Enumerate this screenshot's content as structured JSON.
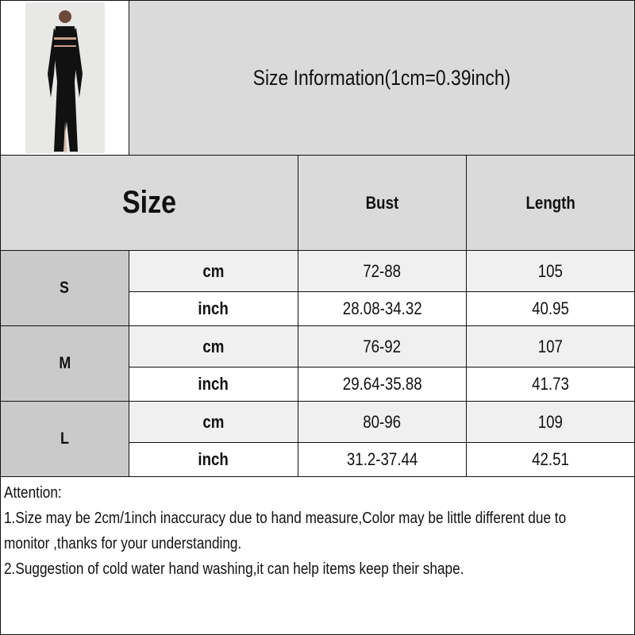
{
  "title": "Size Information(1cm=0.39inch)",
  "header": {
    "size": "Size",
    "bust": "Bust",
    "length": "Length"
  },
  "rows": [
    {
      "size": "S",
      "cm": {
        "unit": "cm",
        "bust": "72-88",
        "length": "105"
      },
      "inch": {
        "unit": "inch",
        "bust": "28.08-34.32",
        "length": "40.95"
      }
    },
    {
      "size": "M",
      "cm": {
        "unit": "cm",
        "bust": "76-92",
        "length": "107"
      },
      "inch": {
        "unit": "inch",
        "bust": "29.64-35.88",
        "length": "41.73"
      }
    },
    {
      "size": "L",
      "cm": {
        "unit": "cm",
        "bust": "80-96",
        "length": "109"
      },
      "inch": {
        "unit": "inch",
        "bust": "31.2-37.44",
        "length": "42.51"
      }
    }
  ],
  "attention": {
    "heading": "Attention:",
    "line1a": "1.Size may be 2cm/1inch inaccuracy due to hand measure,Color may be little different due to",
    "line1b": "monitor ,thanks for your understanding.",
    "line2": "2.Suggestion of cold water hand washing,it can help items keep their shape."
  },
  "colors": {
    "header_bg": "#dadada",
    "size_bg": "#cbcaca",
    "cm_row_bg": "#f0f0f0",
    "inch_row_bg": "#ffffff"
  }
}
